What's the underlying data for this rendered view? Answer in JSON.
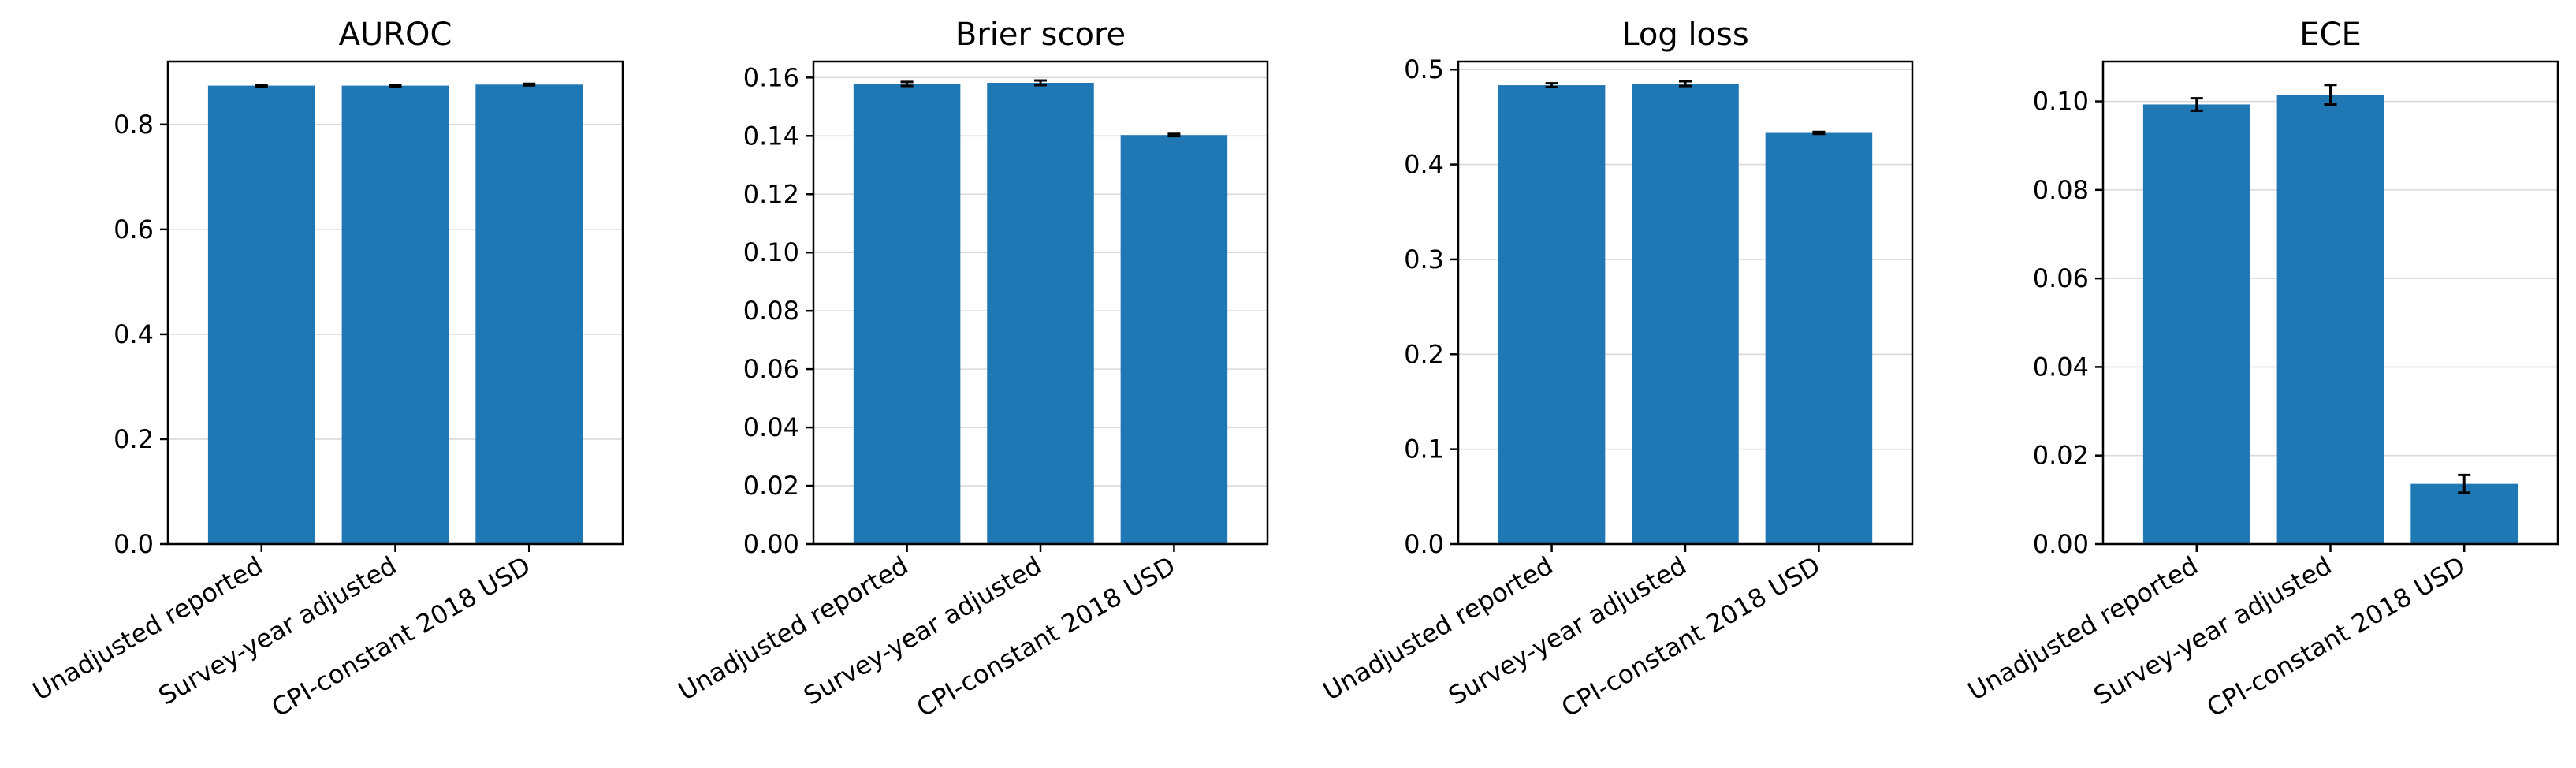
{
  "chart_data": [
    {
      "type": "bar",
      "title": "AUROC",
      "categories": [
        "Unadjusted reported",
        "Survey-year adjusted",
        "CPI-constant 2018 USD"
      ],
      "values": [
        0.874,
        0.874,
        0.876
      ],
      "errors": [
        0.0015,
        0.0015,
        0.0015
      ],
      "ylim": [
        0,
        0.92
      ],
      "yticks": [
        0.0,
        0.2,
        0.4,
        0.6,
        0.8
      ],
      "ytick_labels": [
        "0.0",
        "0.2",
        "0.4",
        "0.6",
        "0.8"
      ],
      "color": "#1f77b4",
      "grid": "y"
    },
    {
      "type": "bar",
      "title": "Brier score",
      "categories": [
        "Unadjusted reported",
        "Survey-year adjusted",
        "CPI-constant 2018 USD"
      ],
      "values": [
        0.1578,
        0.1582,
        0.1403
      ],
      "errors": [
        0.0007,
        0.0008,
        0.0004
      ],
      "ylim": [
        0,
        0.1655
      ],
      "yticks": [
        0.0,
        0.02,
        0.04,
        0.06,
        0.08,
        0.1,
        0.12,
        0.14,
        0.16
      ],
      "ytick_labels": [
        "0.00",
        "0.02",
        "0.04",
        "0.06",
        "0.08",
        "0.10",
        "0.12",
        "0.14",
        "0.16"
      ],
      "color": "#1f77b4",
      "grid": "y"
    },
    {
      "type": "bar",
      "title": "Log loss",
      "categories": [
        "Unadjusted reported",
        "Survey-year adjusted",
        "CPI-constant 2018 USD"
      ],
      "values": [
        0.4835,
        0.4852,
        0.4333
      ],
      "errors": [
        0.002,
        0.0025,
        0.001
      ],
      "ylim": [
        0,
        0.5085
      ],
      "yticks": [
        0.0,
        0.1,
        0.2,
        0.3,
        0.4,
        0.5
      ],
      "ytick_labels": [
        "0.0",
        "0.1",
        "0.2",
        "0.3",
        "0.4",
        "0.5"
      ],
      "color": "#1f77b4",
      "grid": "y"
    },
    {
      "type": "bar",
      "title": "ECE",
      "categories": [
        "Unadjusted reported",
        "Survey-year adjusted",
        "CPI-constant 2018 USD"
      ],
      "values": [
        0.0993,
        0.1015,
        0.0136
      ],
      "errors": [
        0.0014,
        0.0022,
        0.002
      ],
      "ylim": [
        0,
        0.109
      ],
      "yticks": [
        0.0,
        0.02,
        0.04,
        0.06,
        0.08,
        0.1
      ],
      "ytick_labels": [
        "0.00",
        "0.02",
        "0.04",
        "0.06",
        "0.08",
        "0.10"
      ],
      "color": "#1f77b4",
      "grid": "y"
    }
  ]
}
